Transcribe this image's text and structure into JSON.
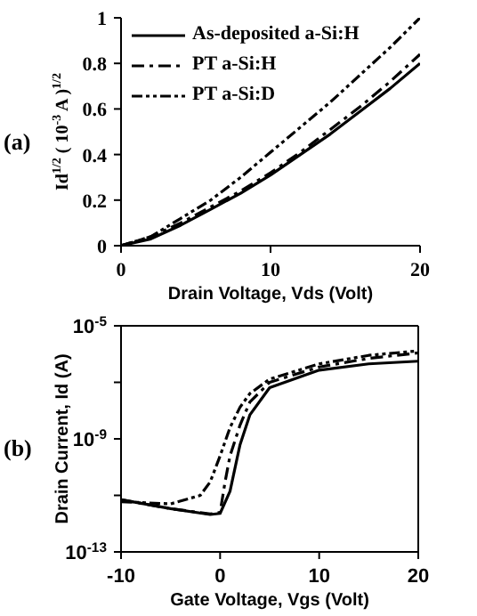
{
  "chart_data": [
    {
      "type": "line",
      "xlabel": "Drain Voltage, Vds (Volt)",
      "ylabel": "Id$^{1/2}$ ( 10$^{-3}$ A )$^{1/2}$",
      "annotations": [
        "(a)"
      ],
      "xlim": [
        0,
        20
      ],
      "xticks": [
        0,
        10,
        20
      ],
      "ylim": [
        0,
        1
      ],
      "yticks": [
        0,
        0.2,
        0.4,
        0.6,
        0.8,
        1
      ],
      "legend": "top left",
      "series": [
        {
          "name": "As-deposited a-Si:H",
          "color": "#000000",
          "line_style": "solid",
          "x": [
            0,
            2,
            4,
            6,
            8,
            10,
            12,
            14,
            16,
            18,
            20
          ],
          "values": [
            0,
            0.03,
            0.09,
            0.16,
            0.23,
            0.31,
            0.4,
            0.49,
            0.59,
            0.69,
            0.8
          ]
        },
        {
          "name": "PT a-Si:H",
          "color": "#000000",
          "line_style": "dashed",
          "x": [
            0,
            2,
            4,
            6,
            8,
            10,
            12,
            14,
            16,
            18,
            20
          ],
          "values": [
            0,
            0.04,
            0.1,
            0.17,
            0.24,
            0.32,
            0.41,
            0.51,
            0.61,
            0.72,
            0.84
          ]
        },
        {
          "name": "PT a-Si:D",
          "color": "#000000",
          "line_style": "dotted",
          "x": [
            0,
            2,
            4,
            6,
            8,
            10,
            12,
            14,
            16,
            18,
            20
          ],
          "values": [
            0,
            0.04,
            0.12,
            0.2,
            0.3,
            0.41,
            0.52,
            0.63,
            0.75,
            0.87,
            1
          ]
        }
      ]
    },
    {
      "type": "line",
      "xlabel": "Gate Voltage, Vgs (Volt)",
      "ylabel": "Drain Current, Id (A)",
      "annotations": [
        "(b)"
      ],
      "log": "y",
      "xlim": [
        -10,
        20
      ],
      "xticks": [
        -10,
        0,
        10,
        20
      ],
      "ylim": [
        1e-13,
        1e-05
      ],
      "yticks": [
        {
          "value": 1e-13,
          "label": "10$^{-13}$"
        },
        {
          "value": 1e-11,
          "label": null
        },
        {
          "value": 1e-09,
          "label": "10$^{-9}$"
        },
        {
          "value": 1e-07,
          "label": null
        },
        {
          "value": 1e-05,
          "label": "10$^{-5}$"
        }
      ],
      "series": [
        {
          "color": "#000000",
          "line_style": "solid",
          "x": [
            -10,
            -5,
            -1,
            0,
            1,
            2,
            3,
            5,
            10,
            15,
            20
          ],
          "values": [
            7e-12,
            3.4e-12,
            2.1e-12,
            2.3e-12,
            1.4e-11,
            6e-10,
            7e-09,
            6.5e-08,
            2.7e-07,
            4.5e-07,
            5.6e-07
          ]
        },
        {
          "color": "#000000",
          "line_style": "dashed",
          "x": [
            -10,
            -5,
            -1,
            0,
            0.5,
            1,
            2,
            3,
            5,
            10,
            15,
            20
          ],
          "values": [
            7e-12,
            3.4e-12,
            2.2e-12,
            2.5e-12,
            3e-11,
            2.5e-10,
            3e-09,
            2e-08,
            1e-07,
            3.5e-07,
            7e-07,
            1.1e-06
          ]
        },
        {
          "color": "#000000",
          "line_style": "dotted",
          "x": [
            -10,
            -5,
            -2,
            -1,
            0,
            1,
            2,
            3,
            5,
            10,
            15,
            20
          ],
          "values": [
            6e-12,
            5e-12,
            1e-11,
            3e-11,
            2.5e-10,
            2.5e-09,
            1.3e-08,
            4e-08,
            1.3e-07,
            4.5e-07,
            9e-07,
            1.3e-06
          ]
        }
      ]
    }
  ]
}
